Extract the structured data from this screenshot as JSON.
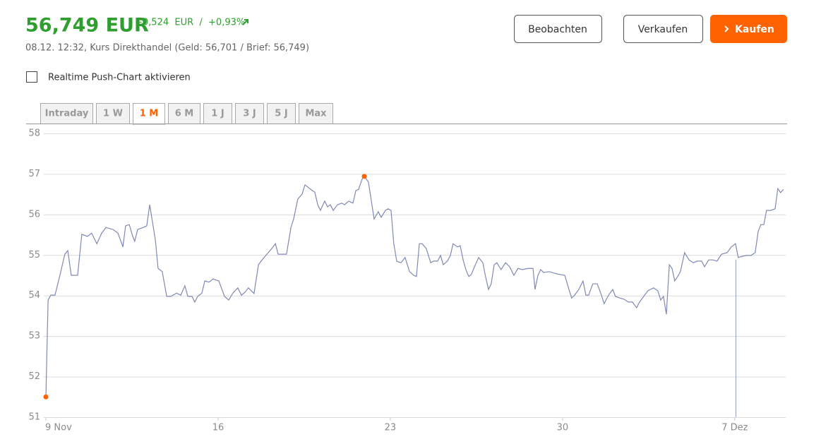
{
  "header": {
    "price": "56,749 EUR",
    "change": "+0,524  EUR  /  +0,93%",
    "quote_info": "08.12. 12:32, Kurs Direkthandel (Geld: 56,701 / Brief: 56,749)"
  },
  "buttons": {
    "watch": "Beobachten",
    "sell": "Verkaufen",
    "buy": "Kaufen"
  },
  "checkbox": {
    "label": "Realtime Push-Chart aktivieren"
  },
  "tabs": [
    {
      "label": "Intraday"
    },
    {
      "label": "1 W"
    },
    {
      "label": "1 M",
      "active": true
    },
    {
      "label": "6 M"
    },
    {
      "label": "1 J"
    },
    {
      "label": "3 J"
    },
    {
      "label": "5 J"
    },
    {
      "label": "Max"
    }
  ],
  "chart_data": {
    "type": "line",
    "color": "#8088b5",
    "marker_color": "#ff6200",
    "grid": true,
    "xlim": [
      0,
      30.07
    ],
    "ylim": [
      51,
      58
    ],
    "xticks": [
      {
        "value": 0,
        "label": "9 Nov"
      },
      {
        "value": 7,
        "label": "16"
      },
      {
        "value": 14,
        "label": "23"
      },
      {
        "value": 21,
        "label": "30"
      },
      {
        "value": 28,
        "label": "7 Dez"
      }
    ],
    "yticks": [
      51,
      52,
      53,
      54,
      55,
      56,
      57,
      58
    ],
    "x": [
      0,
      0.09,
      0.2,
      0.37,
      0.57,
      0.77,
      0.89,
      1.03,
      1.29,
      1.46,
      1.69,
      1.86,
      2.07,
      2.27,
      2.44,
      2.73,
      2.93,
      3.13,
      3.24,
      3.39,
      3.53,
      3.61,
      3.73,
      3.96,
      4.1,
      4.22,
      4.45,
      4.56,
      4.73,
      4.91,
      5.08,
      5.31,
      5.48,
      5.65,
      5.77,
      5.94,
      6.05,
      6.17,
      6.34,
      6.46,
      6.63,
      6.8,
      7.03,
      7.26,
      7.43,
      7.6,
      7.8,
      7.95,
      8.09,
      8.23,
      8.46,
      8.64,
      8.75,
      8.87,
      9.04,
      9.18,
      9.33,
      9.44,
      9.61,
      9.78,
      9.96,
      10.07,
      10.24,
      10.41,
      10.53,
      10.64,
      10.76,
      10.93,
      11.05,
      11.16,
      11.33,
      11.45,
      11.56,
      11.68,
      11.85,
      12.02,
      12.14,
      12.31,
      12.48,
      12.6,
      12.71,
      12.85,
      12.94,
      13.11,
      13.23,
      13.34,
      13.51,
      13.63,
      13.8,
      13.91,
      14.03,
      14.14,
      14.26,
      14.43,
      14.6,
      14.78,
      14.95,
      15.06,
      15.18,
      15.29,
      15.46,
      15.64,
      15.75,
      15.92,
      16.04,
      16.15,
      16.32,
      16.44,
      16.55,
      16.73,
      16.84,
      16.96,
      17.07,
      17.19,
      17.3,
      17.42,
      17.59,
      17.76,
      17.87,
      17.99,
      18.1,
      18.22,
      18.33,
      18.5,
      18.68,
      18.85,
      19.02,
      19.19,
      19.37,
      19.6,
      19.8,
      19.88,
      20,
      20.11,
      20.23,
      20.46,
      20.8,
      21.09,
      21.26,
      21.37,
      21.49,
      21.66,
      21.83,
      21.95,
      22.06,
      22.23,
      22.41,
      22.58,
      22.69,
      22.87,
      23.04,
      23.15,
      23.33,
      23.5,
      23.67,
      23.84,
      24.01,
      24.13,
      24.3,
      24.47,
      24.7,
      24.87,
      24.99,
      25.1,
      25.22,
      25.34,
      25.45,
      25.56,
      25.68,
      25.79,
      25.96,
      26.14,
      26.31,
      26.48,
      26.65,
      26.77,
      26.94,
      27.11,
      27.28,
      27.46,
      27.69,
      27.86,
      28.03,
      28.14,
      28.32,
      28.49,
      28.66,
      28.83,
      28.95,
      29.06,
      29.18,
      29.29,
      29.46,
      29.64,
      29.75,
      29.86,
      29.98
    ],
    "values": [
      51.5,
      53.89,
      54.01,
      54.01,
      54.5,
      55.02,
      55.11,
      54.5,
      54.5,
      55.51,
      55.46,
      55.54,
      55.28,
      55.54,
      55.68,
      55.63,
      55.54,
      55.2,
      55.72,
      55.75,
      55.46,
      55.34,
      55.63,
      55.68,
      55.72,
      56.24,
      55.37,
      54.67,
      54.59,
      53.98,
      53.98,
      54.06,
      54.01,
      54.24,
      53.98,
      53.98,
      53.84,
      53.98,
      54.06,
      54.36,
      54.33,
      54.41,
      54.36,
      53.98,
      53.89,
      54.06,
      54.19,
      54.01,
      54.08,
      54.19,
      54.05,
      54.76,
      54.85,
      54.94,
      55.06,
      55.16,
      55.28,
      55.02,
      55.02,
      55.02,
      55.68,
      55.89,
      56.38,
      56.5,
      56.73,
      56.68,
      56.62,
      56.55,
      56.24,
      56.1,
      56.33,
      56.19,
      56.24,
      56.1,
      56.24,
      56.28,
      56.24,
      56.33,
      56.28,
      56.59,
      56.62,
      56.87,
      56.94,
      56.8,
      56.33,
      55.89,
      56.07,
      55.93,
      56.1,
      56.14,
      56.1,
      55.28,
      54.85,
      54.81,
      54.94,
      54.59,
      54.5,
      54.47,
      55.28,
      55.28,
      55.16,
      54.81,
      54.85,
      54.85,
      54.99,
      54.76,
      54.85,
      54.99,
      55.28,
      55.2,
      55.23,
      54.88,
      54.64,
      54.47,
      54.53,
      54.71,
      54.94,
      54.81,
      54.47,
      54.15,
      54.29,
      54.76,
      54.81,
      54.64,
      54.81,
      54.71,
      54.5,
      54.67,
      54.64,
      54.67,
      54.67,
      54.15,
      54.5,
      54.64,
      54.57,
      54.59,
      54.53,
      54.5,
      54.15,
      53.94,
      54.01,
      54.15,
      54.36,
      54.01,
      54.01,
      54.29,
      54.29,
      54.01,
      53.8,
      54.01,
      54.15,
      53.98,
      53.94,
      53.91,
      53.84,
      53.84,
      53.7,
      53.84,
      53.98,
      54.12,
      54.19,
      54.12,
      53.89,
      53.98,
      53.54,
      54.76,
      54.67,
      54.36,
      54.47,
      54.59,
      55.06,
      54.88,
      54.81,
      54.85,
      54.85,
      54.71,
      54.88,
      54.88,
      54.85,
      55.02,
      55.06,
      55.2,
      55.28,
      54.94,
      54.97,
      54.99,
      54.99,
      55.06,
      55.58,
      55.75,
      55.75,
      56.1,
      56.1,
      56.14,
      56.64,
      56.54,
      56.62
    ]
  }
}
